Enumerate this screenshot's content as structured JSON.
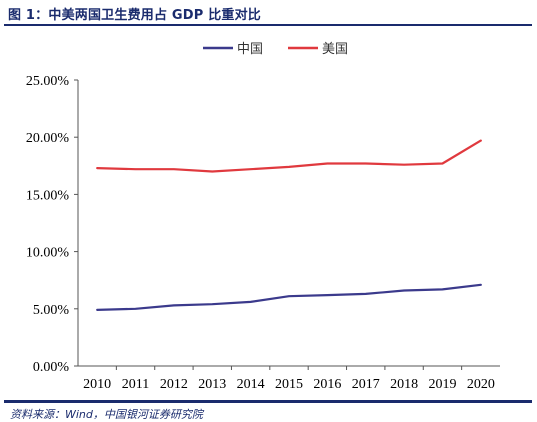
{
  "figure": {
    "title": "图 1：中美两国卫生费用占 GDP 比重对比",
    "source": "资料来源：Wind，中国银河证券研究院"
  },
  "chart_data": {
    "type": "line",
    "title": "",
    "xlabel": "",
    "ylabel": "",
    "x": [
      "2010",
      "2011",
      "2012",
      "2013",
      "2014",
      "2015",
      "2016",
      "2017",
      "2018",
      "2019",
      "2020"
    ],
    "ylim": [
      0,
      25
    ],
    "yticks": [
      "0.00%",
      "5.00%",
      "10.00%",
      "15.00%",
      "20.00%",
      "25.00%"
    ],
    "grid": false,
    "legend": "top-center",
    "series": [
      {
        "name": "中国",
        "color": "#3b3a8c",
        "values": [
          4.9,
          5.0,
          5.3,
          5.4,
          5.6,
          6.1,
          6.2,
          6.3,
          6.6,
          6.7,
          7.1
        ]
      },
      {
        "name": "美国",
        "color": "#e0393e",
        "values": [
          17.3,
          17.2,
          17.2,
          17.0,
          17.2,
          17.4,
          17.7,
          17.7,
          17.6,
          17.7,
          19.7
        ]
      }
    ]
  }
}
